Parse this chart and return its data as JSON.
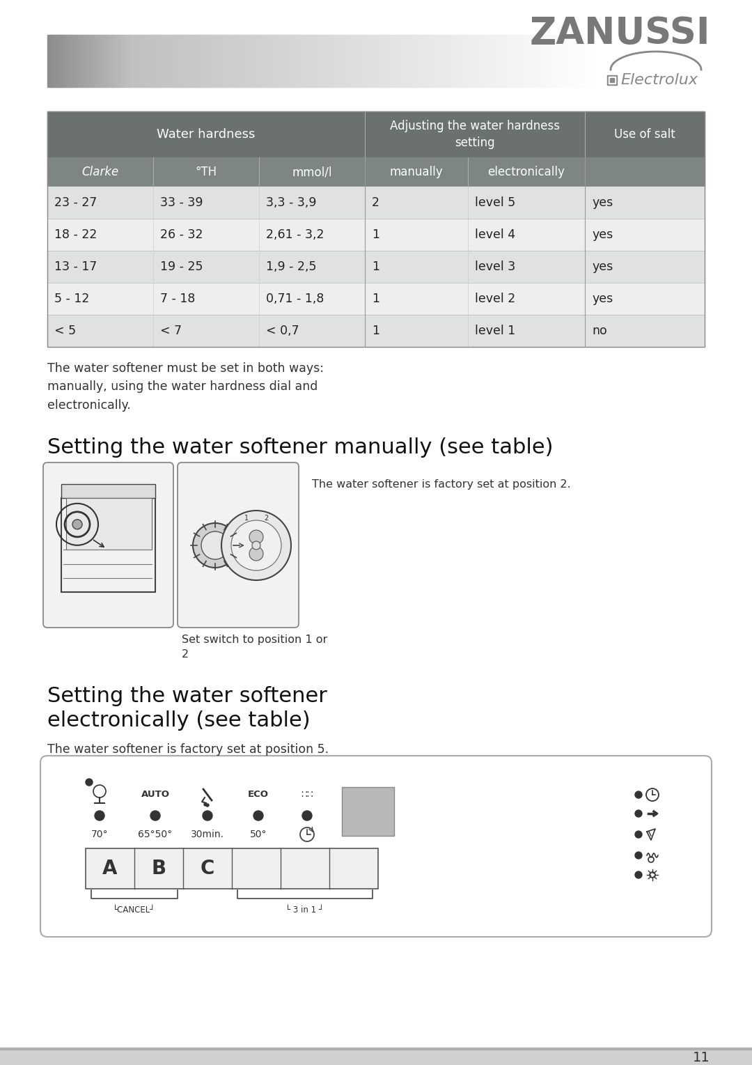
{
  "bg_color": "#ffffff",
  "zanussi_text": "ZANUSSI",
  "electrolux_text": "Electrolux",
  "table_header_dark": "#6b7070",
  "table_header_sub": "#7e8585",
  "table_row_even": "#e0e2e2",
  "table_row_odd": "#edeeed",
  "col_headers_row2": [
    "Clarke",
    "°TH",
    "mmol/l",
    "manually",
    "electronically",
    ""
  ],
  "table_data": [
    [
      "23 - 27",
      "33 - 39",
      "3,3 - 3,9",
      "2",
      "level 5",
      "yes"
    ],
    [
      "18 - 22",
      "26 - 32",
      "2,61 - 3,2",
      "1",
      "level 4",
      "yes"
    ],
    [
      "13 - 17",
      "19 - 25",
      "1,9 - 2,5",
      "1",
      "level 3",
      "yes"
    ],
    [
      "5 - 12",
      "7 - 18",
      "0,71 - 1,8",
      "1",
      "level 2",
      "yes"
    ],
    [
      "< 5",
      "< 7",
      "< 0,7",
      "1",
      "level 1",
      "no"
    ]
  ],
  "paragraph_text": "The water softener must be set in both ways:\nmanually, using the water hardness dial and\nelectronically.",
  "section1_title": "Setting the water softener manually (see table)",
  "caption1": "Set switch to position 1 or\n2",
  "factory_text1": "The water softener is factory set at position 2.",
  "section2_title": "Setting the water softener\nelectronically (see table)",
  "factory_text2": "The water softener is factory set at position 5.",
  "page_number": "11"
}
